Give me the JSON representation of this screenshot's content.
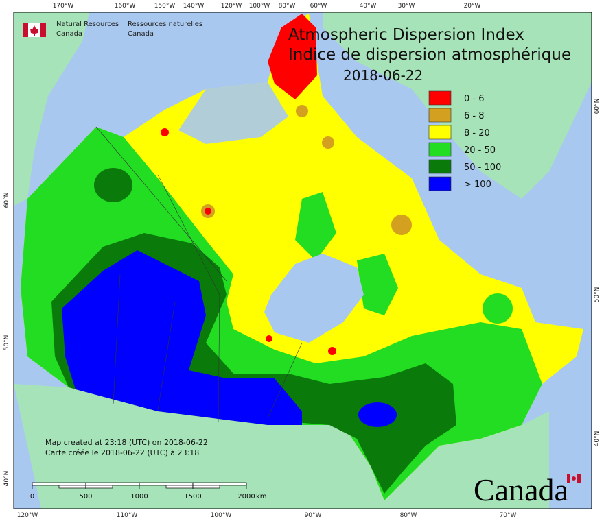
{
  "header": {
    "agency_en": [
      "Natural Resources",
      "Canada"
    ],
    "agency_fr": [
      "Ressources naturelles",
      "Canada"
    ]
  },
  "title": [
    "Atmospheric Dispersion Index",
    "Indice de dispersion atmosphérique",
    "2018-06-22"
  ],
  "legend": [
    {
      "label": "0 - 6",
      "color": "#ff0000"
    },
    {
      "label": "6 - 8",
      "color": "#d4a020"
    },
    {
      "label": "8 - 20",
      "color": "#ffff00"
    },
    {
      "label": "20 - 50",
      "color": "#22dd22"
    },
    {
      "label": "50 - 100",
      "color": "#0a7a0a"
    },
    {
      "label": "> 100",
      "color": "#0000ff"
    }
  ],
  "graticule": {
    "top": [
      "170°W",
      "160°W",
      "150°W",
      "140°W",
      "120°W",
      "100°W",
      "80°W",
      "60°W",
      "40°W",
      "30°W",
      "20°W"
    ],
    "bottom": [
      "120°W",
      "110°W",
      "100°W",
      "90°W",
      "80°W",
      "70°W"
    ],
    "left": [
      "60°N",
      "50°N",
      "40°N"
    ],
    "right": [
      "60°N",
      "50°N",
      "40°N"
    ]
  },
  "notes": [
    "Map created at 23:18 (UTC) on 2018-06-22",
    "Carte créée le 2018-06-22 (UTC) à 23:18"
  ],
  "scale_bar": {
    "ticks": [
      0,
      500,
      1000,
      1500,
      2000
    ],
    "unit": "km"
  },
  "wordmark": "Canada"
}
